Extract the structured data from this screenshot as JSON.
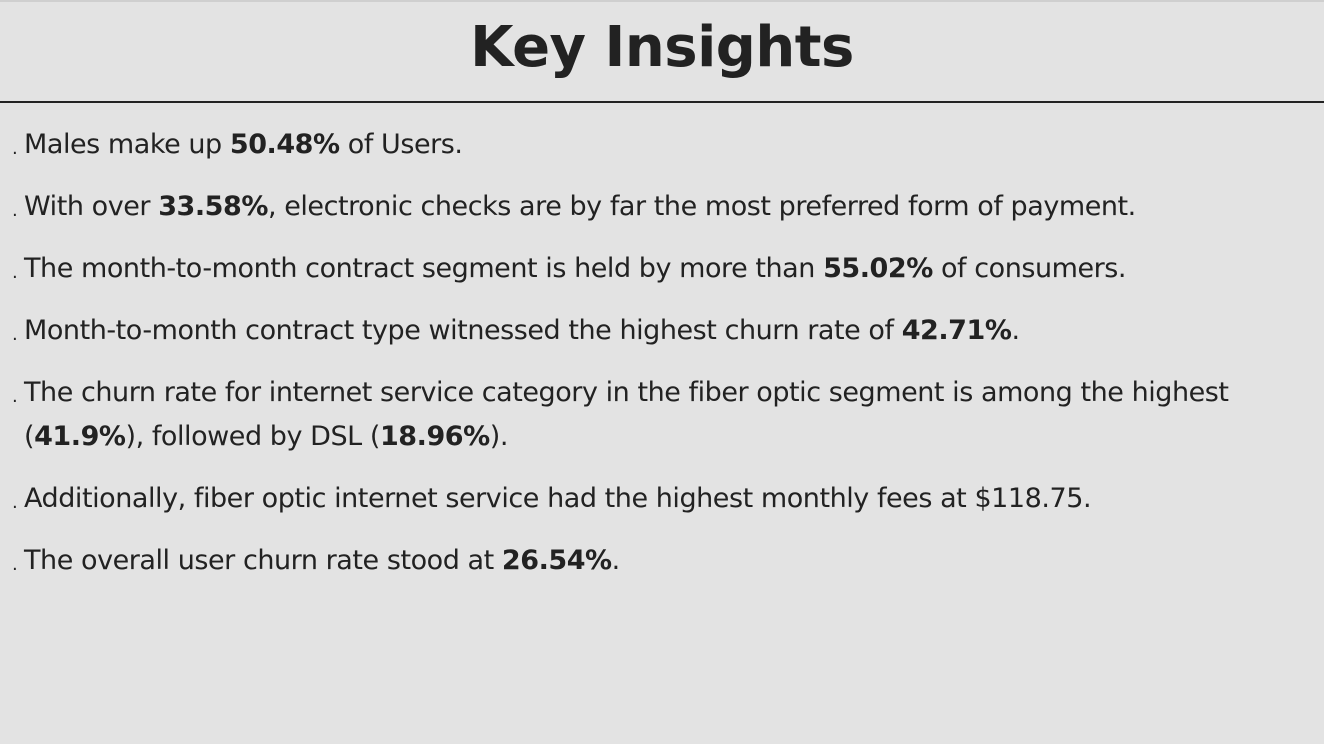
{
  "title": "Key Insights",
  "bullet_char": ".",
  "insights": [
    {
      "pre": "Males make up ",
      "b1": "50.48%",
      "mid": " of Users.",
      "b2": "",
      "post": ""
    },
    {
      "pre": "With over ",
      "b1": "33.58%",
      "mid": ", electronic checks are by far the most preferred form of payment.",
      "b2": "",
      "post": ""
    },
    {
      "pre": "The month-to-month contract segment is held by more than ",
      "b1": "55.02%",
      "mid": " of consumers.",
      "b2": "",
      "post": ""
    },
    {
      "pre": "Month-to-month contract type witnessed the highest churn rate of ",
      "b1": "42.71%",
      "mid": ".",
      "b2": "",
      "post": ""
    },
    {
      "pre": "The churn rate for internet service category in the fiber optic segment is among the highest (",
      "b1": "41.9%",
      "mid": "), followed by DSL (",
      "b2": "18.96%",
      "post": ")."
    },
    {
      "pre": "Additionally, fiber optic internet service had the highest monthly fees at $118.75.",
      "b1": "",
      "mid": "",
      "b2": "",
      "post": ""
    },
    {
      "pre": "The overall user churn rate stood at ",
      "b1": "26.54%",
      "mid": ".",
      "b2": "",
      "post": ""
    }
  ]
}
